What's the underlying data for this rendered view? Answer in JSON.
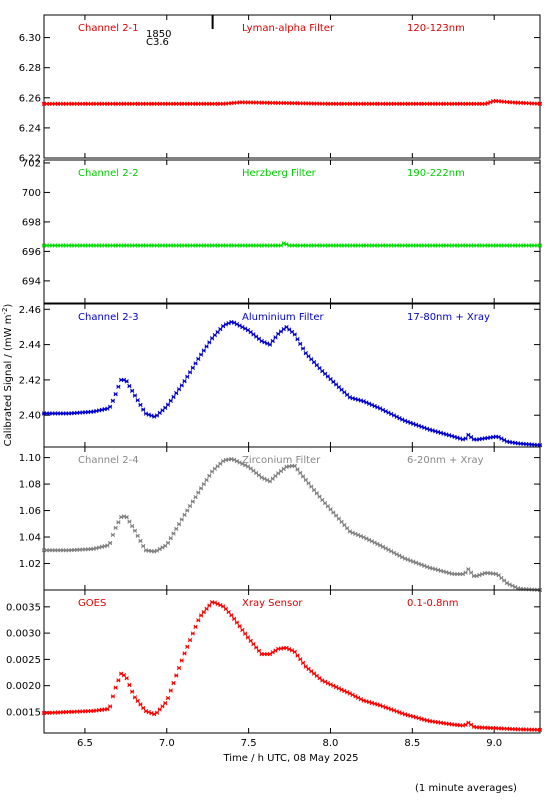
{
  "chart_data": {
    "type": "scatter",
    "xlabel": "Time / h UTC, 08 May 2025",
    "ylabel": "Calibrated Signal / (mW m",
    "ylabel_sup": "-2",
    "ylabel_end": ")",
    "note": "(1 minute averages)",
    "xlim": [
      6.25,
      9.28
    ],
    "xticks": [
      6.5,
      7.0,
      7.5,
      8.0,
      8.5,
      9.0
    ],
    "xtick_labels": [
      "6.5",
      "7.0",
      "7.5",
      "8.0",
      "8.5",
      "9.0"
    ],
    "event_marker": {
      "x": 7.28,
      "labels": [
        "1850",
        "C3.6"
      ]
    },
    "panels": [
      {
        "channel": "Channel 2-1",
        "filter": "Lyman-alpha Filter",
        "band": "120-123nm",
        "color": "#ff0000",
        "label_color": "#dd0000",
        "ylim": [
          6.22,
          6.315
        ],
        "yticks": [
          6.22,
          6.24,
          6.26,
          6.28,
          6.3
        ],
        "ytick_labels": [
          "6.22",
          "6.24",
          "6.26",
          "6.28",
          "6.30"
        ],
        "x": [
          6.25,
          7.0,
          7.35,
          7.45,
          8.0,
          8.5,
          8.95,
          9.0,
          9.1,
          9.28
        ],
        "y": [
          6.256,
          6.256,
          6.256,
          6.257,
          6.256,
          6.256,
          6.256,
          6.258,
          6.257,
          6.256
        ]
      },
      {
        "channel": "Channel 2-2",
        "filter": "Herzberg Filter",
        "band": "190-222nm",
        "color": "#00dd00",
        "label_color": "#00cc00",
        "ylim": [
          692.5,
          702.2
        ],
        "yticks": [
          694,
          696,
          698,
          700,
          702
        ],
        "ytick_labels": [
          "694",
          "696",
          "698",
          "700",
          "702"
        ],
        "x": [
          6.25,
          7.0,
          7.7,
          7.72,
          7.74,
          8.5,
          9.28
        ],
        "y": [
          696.4,
          696.4,
          696.4,
          696.6,
          696.4,
          696.4,
          696.4
        ]
      },
      {
        "channel": "Channel 2-3",
        "filter": "Aluminium Filter",
        "band": "17-80nm + Xray",
        "color": "#0000cc",
        "label_color": "#0000cc",
        "ylim": [
          2.382,
          2.463
        ],
        "yticks": [
          2.4,
          2.42,
          2.44,
          2.46
        ],
        "ytick_labels": [
          "2.40",
          "2.42",
          "2.44",
          "2.46"
        ],
        "x": [
          6.25,
          6.4,
          6.55,
          6.65,
          6.68,
          6.72,
          6.75,
          6.8,
          6.87,
          6.93,
          7.0,
          7.1,
          7.2,
          7.28,
          7.35,
          7.4,
          7.5,
          7.58,
          7.63,
          7.68,
          7.73,
          7.78,
          7.85,
          7.95,
          8.05,
          8.12,
          8.2,
          8.3,
          8.45,
          8.6,
          8.75,
          8.82,
          8.84,
          8.88,
          8.95,
          9.02,
          9.08,
          9.15,
          9.28
        ],
        "y": [
          2.401,
          2.401,
          2.402,
          2.404,
          2.41,
          2.42,
          2.42,
          2.412,
          2.401,
          2.399,
          2.405,
          2.418,
          2.433,
          2.444,
          2.451,
          2.453,
          2.448,
          2.442,
          2.44,
          2.446,
          2.45,
          2.446,
          2.435,
          2.425,
          2.416,
          2.41,
          2.408,
          2.404,
          2.397,
          2.392,
          2.388,
          2.386,
          2.389,
          2.386,
          2.387,
          2.388,
          2.385,
          2.384,
          2.383
        ]
      },
      {
        "channel": "Channel 2-4",
        "filter": "Zirconium Filter",
        "band": "6-20nm + Xray",
        "color": "#808080",
        "label_color": "#888888",
        "ylim": [
          1.0,
          1.108
        ],
        "yticks": [
          1.02,
          1.04,
          1.06,
          1.08,
          1.1
        ],
        "ytick_labels": [
          "1.02",
          "1.04",
          "1.06",
          "1.08",
          "1.10"
        ],
        "x": [
          6.25,
          6.4,
          6.55,
          6.65,
          6.68,
          6.72,
          6.75,
          6.8,
          6.87,
          6.93,
          7.0,
          7.1,
          7.2,
          7.28,
          7.35,
          7.4,
          7.5,
          7.58,
          7.63,
          7.68,
          7.73,
          7.78,
          7.85,
          7.95,
          8.05,
          8.12,
          8.2,
          8.3,
          8.45,
          8.6,
          8.75,
          8.82,
          8.84,
          8.88,
          8.95,
          9.02,
          9.08,
          9.15,
          9.28
        ],
        "y": [
          1.03,
          1.03,
          1.031,
          1.034,
          1.045,
          1.055,
          1.056,
          1.046,
          1.03,
          1.029,
          1.034,
          1.055,
          1.075,
          1.09,
          1.098,
          1.099,
          1.093,
          1.085,
          1.082,
          1.088,
          1.093,
          1.094,
          1.083,
          1.068,
          1.054,
          1.044,
          1.04,
          1.034,
          1.024,
          1.017,
          1.012,
          1.012,
          1.016,
          1.01,
          1.013,
          1.012,
          1.005,
          1.001,
          1.0
        ]
      },
      {
        "channel": "GOES",
        "filter": "Xray Sensor",
        "band": "0.1-0.8nm",
        "color": "#ff0000",
        "label_color": "#dd0000",
        "ylim": [
          0.0011,
          0.00382
        ],
        "yticks": [
          0.0015,
          0.002,
          0.0025,
          0.003,
          0.0035
        ],
        "ytick_labels": [
          "0.0015",
          "0.0020",
          "0.0025",
          "0.0030",
          "0.0035"
        ],
        "x": [
          6.25,
          6.4,
          6.55,
          6.65,
          6.68,
          6.72,
          6.75,
          6.8,
          6.87,
          6.93,
          7.0,
          7.1,
          7.2,
          7.28,
          7.35,
          7.4,
          7.5,
          7.58,
          7.63,
          7.68,
          7.73,
          7.78,
          7.85,
          7.95,
          8.05,
          8.12,
          8.2,
          8.3,
          8.45,
          8.6,
          8.75,
          8.82,
          8.84,
          8.88,
          8.95,
          9.02,
          9.08,
          9.15,
          9.28
        ],
        "y": [
          0.00148,
          0.0015,
          0.00152,
          0.00156,
          0.0019,
          0.00223,
          0.00218,
          0.0018,
          0.00152,
          0.00145,
          0.0017,
          0.00255,
          0.0033,
          0.0036,
          0.0035,
          0.00332,
          0.0029,
          0.0026,
          0.0026,
          0.0027,
          0.00272,
          0.00265,
          0.00236,
          0.0021,
          0.00195,
          0.00185,
          0.00172,
          0.00163,
          0.00146,
          0.00133,
          0.00126,
          0.00124,
          0.0013,
          0.00121,
          0.0012,
          0.00119,
          0.00118,
          0.00117,
          0.00116
        ]
      }
    ]
  }
}
